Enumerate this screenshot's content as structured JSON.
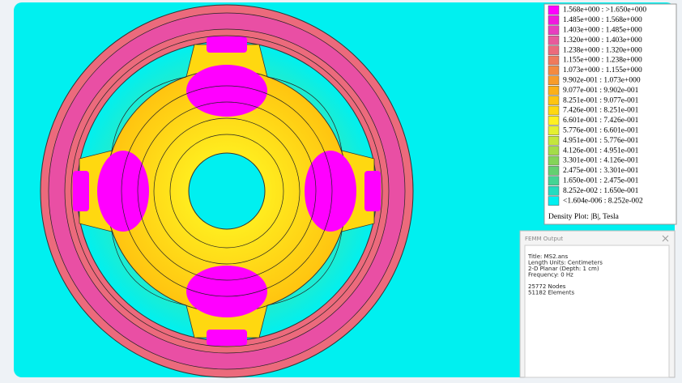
{
  "legend": {
    "items": [
      {
        "label": "1.568e+000 : >1.650e+000",
        "color": "#ff00ff"
      },
      {
        "label": "1.485e+000 : 1.568e+000",
        "color": "#f01adf"
      },
      {
        "label": "1.403e+000 : 1.485e+000",
        "color": "#e83ec0"
      },
      {
        "label": "1.320e+000 : 1.403e+000",
        "color": "#e85a9c"
      },
      {
        "label": "1.238e+000 : 1.320e+000",
        "color": "#ec6a7c"
      },
      {
        "label": "1.155e+000 : 1.238e+000",
        "color": "#f07a5c"
      },
      {
        "label": "1.073e+000 : 1.155e+000",
        "color": "#f48a40"
      },
      {
        "label": "9.902e-001 : 1.073e+000",
        "color": "#f89c2a"
      },
      {
        "label": "9.077e-001 : 9.902e-001",
        "color": "#fcb018"
      },
      {
        "label": "8.251e-001 : 9.077e-001",
        "color": "#ffc410"
      },
      {
        "label": "7.426e-001 : 8.251e-001",
        "color": "#ffd810"
      },
      {
        "label": "6.601e-001 : 7.426e-001",
        "color": "#fff020"
      },
      {
        "label": "5.776e-001 : 6.601e-001",
        "color": "#e4f030"
      },
      {
        "label": "4.951e-001 : 5.776e-001",
        "color": "#c4e63c"
      },
      {
        "label": "4.126e-001 : 4.951e-001",
        "color": "#a4dc48"
      },
      {
        "label": "3.301e-001 : 4.126e-001",
        "color": "#84d458"
      },
      {
        "label": "2.475e-001 : 3.301e-001",
        "color": "#64d070"
      },
      {
        "label": "1.650e-001 : 2.475e-001",
        "color": "#44d494"
      },
      {
        "label": "8.252e-002 : 1.650e-001",
        "color": "#24dcc0"
      },
      {
        "label": "<1.604e-006 : 8.252e-002",
        "color": "#00f0f0"
      }
    ],
    "title": "Density Plot: |B|, Tesla"
  },
  "output_window": {
    "title": "FEMM Output",
    "info": [
      "Title: MS2.ans",
      "Length Units: Centimeters",
      "2-D Planar (Depth: 1 cm)",
      "Frequency: 0 Hz"
    ],
    "stats": [
      "25772 Nodes",
      "51182 Elements"
    ]
  }
}
